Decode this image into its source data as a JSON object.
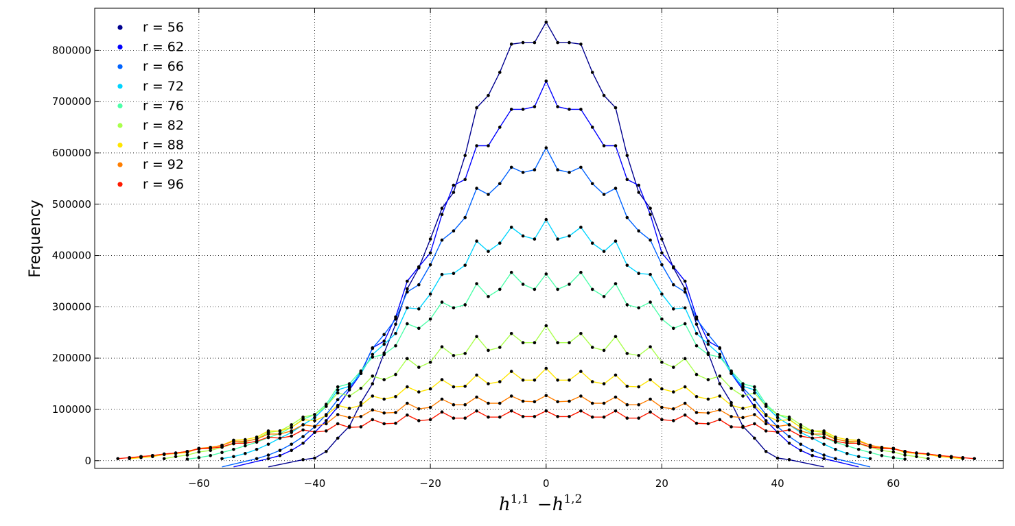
{
  "chart_data": {
    "type": "line",
    "title": "",
    "xlabel": {
      "h1": "h",
      "sup1": "1,1",
      "minus": "−",
      "h2": "h",
      "sup2": "1,2"
    },
    "ylabel": "Frequency",
    "xlim": [
      -78,
      79
    ],
    "ylim": [
      -15000,
      882000
    ],
    "xticks": [
      -60,
      -40,
      -20,
      0,
      20,
      40,
      60
    ],
    "xtick_labels": [
      "−60",
      "−40",
      "−20",
      "0",
      "20",
      "40",
      "60"
    ],
    "yticks": [
      0,
      100000,
      200000,
      300000,
      400000,
      500000,
      600000,
      700000,
      800000
    ],
    "ytick_labels": [
      "0",
      "100000",
      "200000",
      "300000",
      "400000",
      "500000",
      "600000",
      "700000",
      "800000"
    ],
    "grid": true,
    "legend_position": "top-left",
    "dot_color": "#000000",
    "series": [
      {
        "name": "r  = 56",
        "color": "#00008f",
        "half_range": 42,
        "points": [
          [
            0,
            855000
          ],
          [
            2,
            815000
          ],
          [
            4,
            815000
          ],
          [
            6,
            812000
          ],
          [
            8,
            757000
          ],
          [
            10,
            712000
          ],
          [
            12,
            688000
          ],
          [
            14,
            595000
          ],
          [
            16,
            523000
          ],
          [
            18,
            492000
          ],
          [
            20,
            432000
          ],
          [
            22,
            376000
          ],
          [
            24,
            335000
          ],
          [
            26,
            266000
          ],
          [
            28,
            210000
          ],
          [
            30,
            150000
          ],
          [
            32,
            113000
          ],
          [
            34,
            67000
          ],
          [
            36,
            44000
          ],
          [
            38,
            18000
          ],
          [
            40,
            5000
          ],
          [
            42,
            2000
          ]
        ]
      },
      {
        "name": "r  = 62",
        "color": "#0000ff",
        "half_range": 48,
        "points": [
          [
            0,
            740000
          ],
          [
            2,
            690000
          ],
          [
            4,
            685000
          ],
          [
            6,
            685000
          ],
          [
            8,
            650000
          ],
          [
            10,
            614000
          ],
          [
            12,
            614000
          ],
          [
            14,
            548000
          ],
          [
            16,
            537000
          ],
          [
            18,
            480000
          ],
          [
            20,
            405000
          ],
          [
            22,
            378000
          ],
          [
            24,
            350000
          ],
          [
            26,
            280000
          ],
          [
            28,
            233000
          ],
          [
            30,
            220000
          ],
          [
            32,
            170000
          ],
          [
            34,
            138000
          ],
          [
            36,
            105000
          ],
          [
            38,
            78000
          ],
          [
            40,
            55000
          ],
          [
            42,
            34000
          ],
          [
            44,
            20000
          ],
          [
            46,
            10000
          ],
          [
            48,
            4000
          ]
        ]
      },
      {
        "name": "r  = 66",
        "color": "#0063ff",
        "half_range": 50,
        "points": [
          [
            0,
            610000
          ],
          [
            2,
            567000
          ],
          [
            4,
            562000
          ],
          [
            6,
            572000
          ],
          [
            8,
            540000
          ],
          [
            10,
            519000
          ],
          [
            12,
            531000
          ],
          [
            14,
            474000
          ],
          [
            16,
            448000
          ],
          [
            18,
            430000
          ],
          [
            20,
            382000
          ],
          [
            22,
            343000
          ],
          [
            24,
            329000
          ],
          [
            26,
            276000
          ],
          [
            28,
            246000
          ],
          [
            30,
            219000
          ],
          [
            32,
            173000
          ],
          [
            34,
            142000
          ],
          [
            36,
            119000
          ],
          [
            38,
            90000
          ],
          [
            40,
            66000
          ],
          [
            42,
            47000
          ],
          [
            44,
            32000
          ],
          [
            46,
            20000
          ],
          [
            48,
            11000
          ],
          [
            50,
            4000
          ]
        ]
      },
      {
        "name": "r  = 72",
        "color": "#00d4ff",
        "half_range": 56,
        "points": [
          [
            0,
            470000
          ],
          [
            2,
            432000
          ],
          [
            4,
            438000
          ],
          [
            6,
            455000
          ],
          [
            8,
            424000
          ],
          [
            10,
            408000
          ],
          [
            12,
            428000
          ],
          [
            14,
            381000
          ],
          [
            16,
            365000
          ],
          [
            18,
            363000
          ],
          [
            20,
            325000
          ],
          [
            22,
            296000
          ],
          [
            24,
            298000
          ],
          [
            26,
            248000
          ],
          [
            28,
            227000
          ],
          [
            30,
            207000
          ],
          [
            32,
            170000
          ],
          [
            34,
            145000
          ],
          [
            36,
            138000
          ],
          [
            38,
            106000
          ],
          [
            40,
            84000
          ],
          [
            42,
            70000
          ],
          [
            44,
            55000
          ],
          [
            46,
            44000
          ],
          [
            48,
            32000
          ],
          [
            50,
            22000
          ],
          [
            52,
            14000
          ],
          [
            54,
            8000
          ],
          [
            56,
            4000
          ]
        ]
      },
      {
        "name": "r  = 76",
        "color": "#4dffaa",
        "half_range": 62,
        "points": [
          [
            0,
            364000
          ],
          [
            2,
            334000
          ],
          [
            4,
            344000
          ],
          [
            6,
            367000
          ],
          [
            8,
            334000
          ],
          [
            10,
            320000
          ],
          [
            12,
            345000
          ],
          [
            14,
            304000
          ],
          [
            16,
            298000
          ],
          [
            18,
            309000
          ],
          [
            20,
            276000
          ],
          [
            22,
            258000
          ],
          [
            24,
            267000
          ],
          [
            26,
            224000
          ],
          [
            28,
            207000
          ],
          [
            30,
            202000
          ],
          [
            32,
            175000
          ],
          [
            34,
            150000
          ],
          [
            36,
            144000
          ],
          [
            38,
            110000
          ],
          [
            40,
            90000
          ],
          [
            42,
            81000
          ],
          [
            44,
            65000
          ],
          [
            46,
            53000
          ],
          [
            48,
            45000
          ],
          [
            50,
            36000
          ],
          [
            52,
            29000
          ],
          [
            54,
            22000
          ],
          [
            56,
            16000
          ],
          [
            58,
            10000
          ],
          [
            60,
            6000
          ],
          [
            62,
            3000
          ]
        ]
      },
      {
        "name": "r  = 82",
        "color": "#aaff4d",
        "half_range": 66,
        "points": [
          [
            0,
            263000
          ],
          [
            2,
            230000
          ],
          [
            4,
            230000
          ],
          [
            6,
            248000
          ],
          [
            8,
            221000
          ],
          [
            10,
            215000
          ],
          [
            12,
            242000
          ],
          [
            14,
            209000
          ],
          [
            16,
            205000
          ],
          [
            18,
            222000
          ],
          [
            20,
            192000
          ],
          [
            22,
            182000
          ],
          [
            24,
            199000
          ],
          [
            26,
            168000
          ],
          [
            28,
            158000
          ],
          [
            30,
            165000
          ],
          [
            32,
            141000
          ],
          [
            34,
            126000
          ],
          [
            36,
            132000
          ],
          [
            38,
            106000
          ],
          [
            40,
            90000
          ],
          [
            42,
            85000
          ],
          [
            44,
            70000
          ],
          [
            46,
            58000
          ],
          [
            48,
            55000
          ],
          [
            50,
            43000
          ],
          [
            52,
            37000
          ],
          [
            54,
            33000
          ],
          [
            56,
            26000
          ],
          [
            58,
            20000
          ],
          [
            60,
            17000
          ],
          [
            62,
            11000
          ],
          [
            64,
            8000
          ],
          [
            66,
            4000
          ]
        ]
      },
      {
        "name": "r  = 88",
        "color": "#ffe500",
        "half_range": 72,
        "points": [
          [
            0,
            180000
          ],
          [
            2,
            157000
          ],
          [
            4,
            157000
          ],
          [
            6,
            174000
          ],
          [
            8,
            154000
          ],
          [
            10,
            150000
          ],
          [
            12,
            167000
          ],
          [
            14,
            145000
          ],
          [
            16,
            144000
          ],
          [
            18,
            158000
          ],
          [
            20,
            140000
          ],
          [
            22,
            134000
          ],
          [
            24,
            144000
          ],
          [
            26,
            125000
          ],
          [
            28,
            120000
          ],
          [
            30,
            126000
          ],
          [
            32,
            108000
          ],
          [
            34,
            102000
          ],
          [
            36,
            108000
          ],
          [
            38,
            88000
          ],
          [
            40,
            78000
          ],
          [
            42,
            80000
          ],
          [
            44,
            65000
          ],
          [
            46,
            58000
          ],
          [
            48,
            58000
          ],
          [
            50,
            46000
          ],
          [
            52,
            41000
          ],
          [
            54,
            40000
          ],
          [
            56,
            30000
          ],
          [
            58,
            25000
          ],
          [
            60,
            24000
          ],
          [
            62,
            16000
          ],
          [
            64,
            14000
          ],
          [
            66,
            12000
          ],
          [
            68,
            8000
          ],
          [
            70,
            6000
          ],
          [
            72,
            4000
          ]
        ]
      },
      {
        "name": "r  = 92",
        "color": "#ff7e00",
        "half_range": 72,
        "points": [
          [
            0,
            127000
          ],
          [
            2,
            115000
          ],
          [
            4,
            116000
          ],
          [
            6,
            126000
          ],
          [
            8,
            112000
          ],
          [
            10,
            112000
          ],
          [
            12,
            124000
          ],
          [
            14,
            109000
          ],
          [
            16,
            109000
          ],
          [
            18,
            120000
          ],
          [
            20,
            104000
          ],
          [
            22,
            101000
          ],
          [
            24,
            112000
          ],
          [
            26,
            94000
          ],
          [
            28,
            93000
          ],
          [
            30,
            99000
          ],
          [
            32,
            86000
          ],
          [
            34,
            84000
          ],
          [
            36,
            90000
          ],
          [
            38,
            72000
          ],
          [
            40,
            67000
          ],
          [
            42,
            70000
          ],
          [
            44,
            58000
          ],
          [
            46,
            52000
          ],
          [
            48,
            52000
          ],
          [
            50,
            42000
          ],
          [
            52,
            38000
          ],
          [
            54,
            38000
          ],
          [
            56,
            30000
          ],
          [
            58,
            26000
          ],
          [
            60,
            24000
          ],
          [
            62,
            18000
          ],
          [
            64,
            15000
          ],
          [
            66,
            13000
          ],
          [
            68,
            10000
          ],
          [
            70,
            8000
          ],
          [
            72,
            5000
          ]
        ]
      },
      {
        "name": "r  = 96",
        "color": "#ff1a00",
        "half_range": 74,
        "points": [
          [
            0,
            97000
          ],
          [
            2,
            86000
          ],
          [
            4,
            86000
          ],
          [
            6,
            97000
          ],
          [
            8,
            85000
          ],
          [
            10,
            85000
          ],
          [
            12,
            97000
          ],
          [
            14,
            83000
          ],
          [
            16,
            83000
          ],
          [
            18,
            95000
          ],
          [
            20,
            80000
          ],
          [
            22,
            78000
          ],
          [
            24,
            89000
          ],
          [
            26,
            73000
          ],
          [
            28,
            72000
          ],
          [
            30,
            80000
          ],
          [
            32,
            66000
          ],
          [
            34,
            65000
          ],
          [
            36,
            72000
          ],
          [
            38,
            58000
          ],
          [
            40,
            56000
          ],
          [
            42,
            60000
          ],
          [
            44,
            48000
          ],
          [
            46,
            44000
          ],
          [
            48,
            46000
          ],
          [
            50,
            38000
          ],
          [
            52,
            34000
          ],
          [
            54,
            34000
          ],
          [
            56,
            27000
          ],
          [
            58,
            24000
          ],
          [
            60,
            23000
          ],
          [
            62,
            18000
          ],
          [
            64,
            15000
          ],
          [
            66,
            13000
          ],
          [
            68,
            10000
          ],
          [
            70,
            8000
          ],
          [
            72,
            6000
          ],
          [
            74,
            4000
          ]
        ]
      }
    ]
  }
}
